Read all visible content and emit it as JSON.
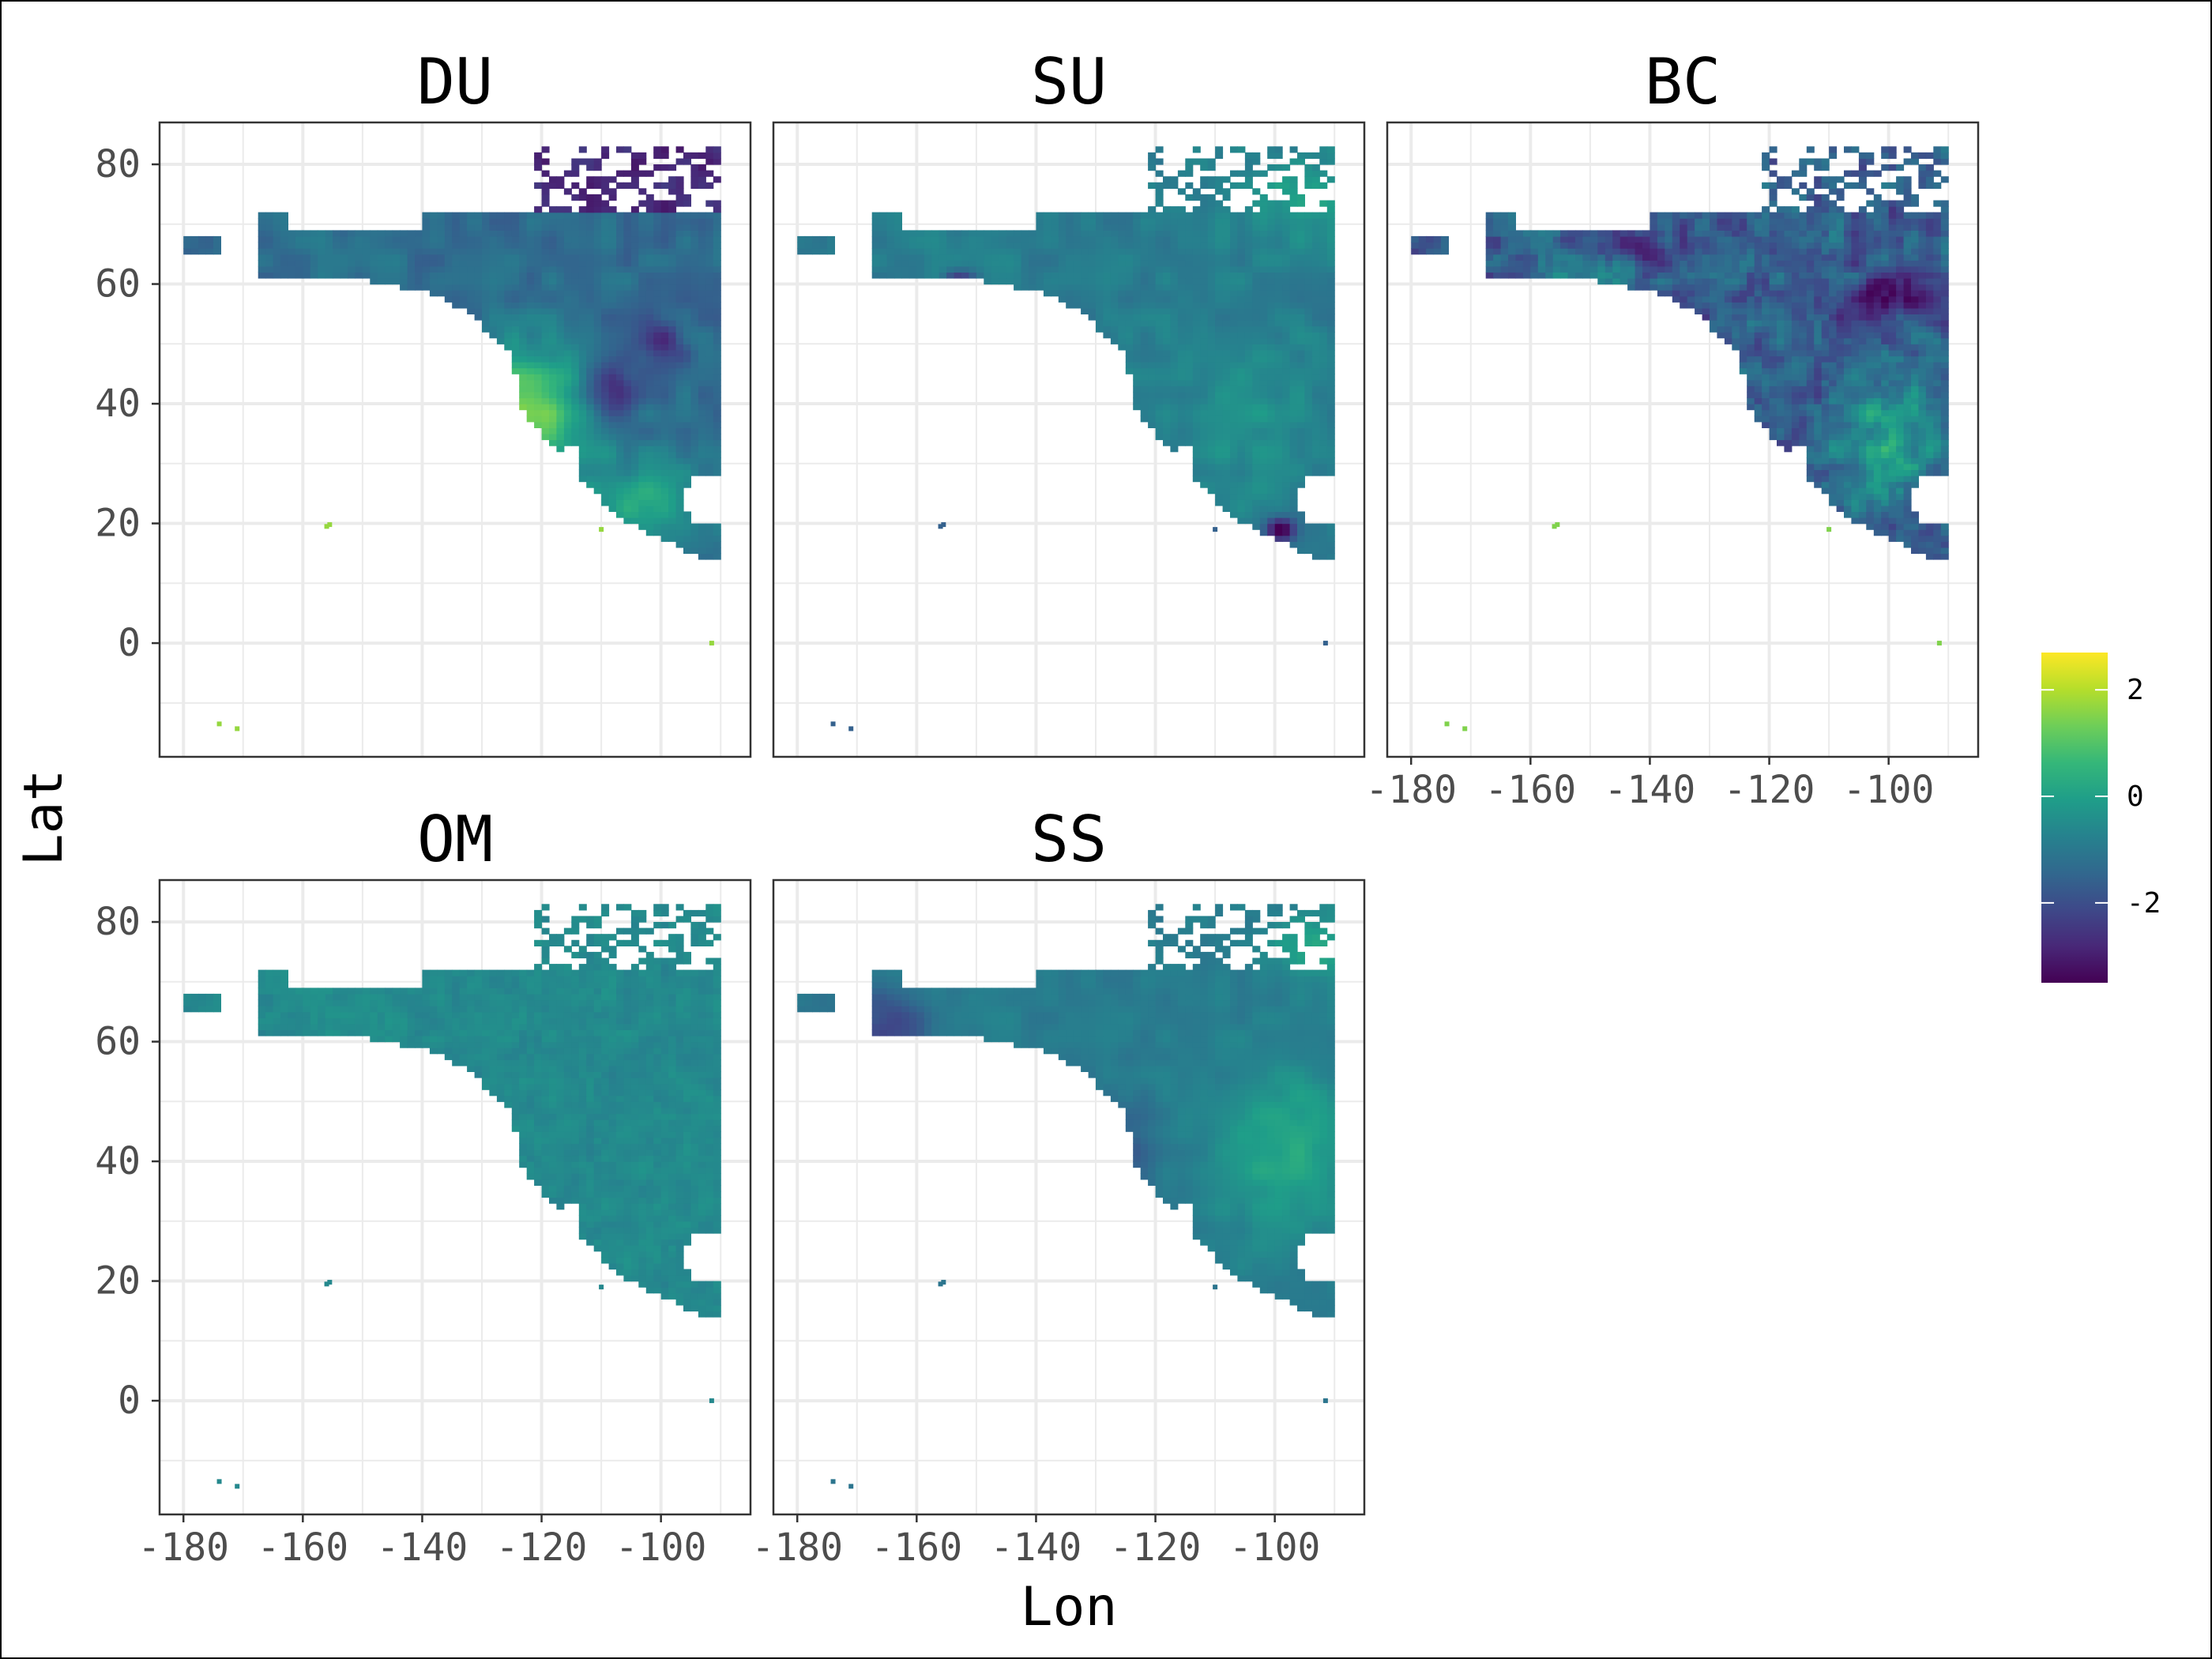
{
  "chart_data": {
    "type": "heatmap",
    "xlabel": "Lon",
    "ylabel": "Lat",
    "panels": [
      {
        "name": "DU",
        "scheme": "du"
      },
      {
        "name": "SU",
        "scheme": "su"
      },
      {
        "name": "BC",
        "scheme": "bc"
      },
      {
        "name": "OM",
        "scheme": "om"
      },
      {
        "name": "SS",
        "scheme": "ss"
      }
    ],
    "x_ticks": [
      -180,
      -160,
      -140,
      -120,
      -100
    ],
    "y_ticks": [
      80,
      60,
      40,
      20,
      0
    ],
    "xlim": [
      -184,
      -85
    ],
    "ylim": [
      -19,
      87
    ],
    "grid": true,
    "legend": {
      "position": "right",
      "colormap": "viridis",
      "range": [
        -3.5,
        2.7
      ],
      "ticks": [
        2,
        0,
        -2
      ],
      "tick_labels": [
        "2",
        "0",
        "-2"
      ]
    },
    "colors": {
      "grid": "#ebebeb",
      "panel_border": "#333333",
      "viridis_low": "#440154",
      "viridis_mid": "#21918c",
      "viridis_high": "#fde725"
    }
  }
}
